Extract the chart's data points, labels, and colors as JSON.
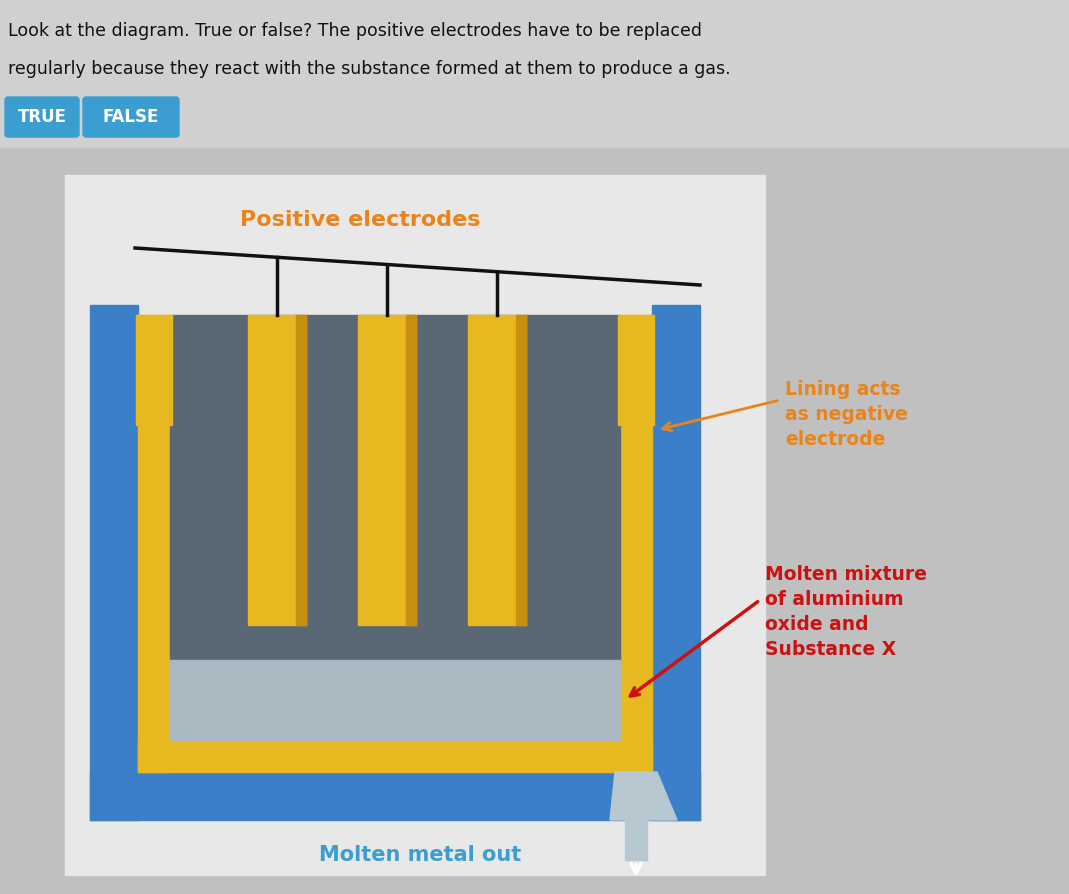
{
  "question_text_line1": "Look at the diagram. True or false? The positive electrodes have to be replaced",
  "question_text_line2": "regularly because they react with the substance formed at them to produce a gas.",
  "btn_true_text": "TRUE",
  "btn_false_text": "FALSE",
  "btn_color": "#3a9fd0",
  "btn_text_color": "#ffffff",
  "positive_electrodes_label": "Positive electrodes",
  "positive_electrodes_color": "#e8841a",
  "lining_label": "Lining acts\nas negative\nelectrode",
  "lining_label_color": "#e8841a",
  "molten_mix_label": "Molten mixture\nof aluminium\noxide and\nSubstance X",
  "molten_mix_label_color": "#cc1111",
  "molten_metal_label": "Molten metal out",
  "molten_metal_color": "#3a9fd0",
  "bg_top_color": "#d0d0d0",
  "bg_bottom_color": "#c0c0c0",
  "outer_wall_color": "#3a7fc8",
  "lining_color": "#e8b820",
  "inner_dark_color": "#5a6875",
  "inner_light_color": "#aab8c2",
  "outlet_color": "#b8c8d0",
  "bus_bar_color": "#111111",
  "red_arrow_color": "#cc1111",
  "orange_arrow_color": "#e8841a"
}
